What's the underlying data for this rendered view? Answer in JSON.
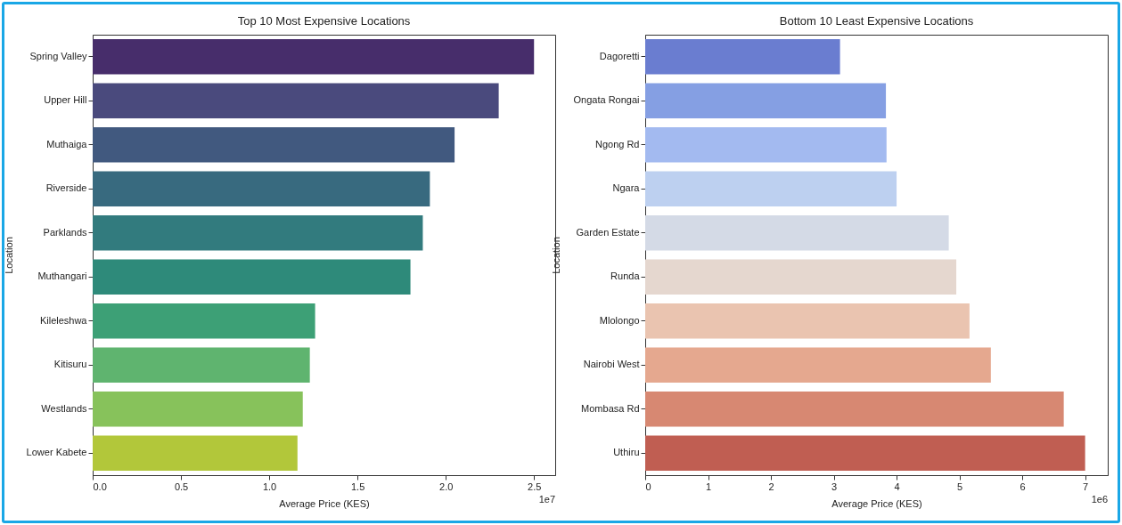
{
  "chart_data": [
    {
      "type": "bar",
      "orientation": "horizontal",
      "title": "Top 10 Most Expensive Locations",
      "xlabel": "Average Price (KES)",
      "ylabel": "Location",
      "categories": [
        "Spring Valley",
        "Upper Hill",
        "Muthaiga",
        "Riverside",
        "Parklands",
        "Muthangari",
        "Kileleshwa",
        "Kitisuru",
        "Westlands",
        "Lower Kabete"
      ],
      "values": [
        2.5,
        2.3,
        2.05,
        1.91,
        1.87,
        1.8,
        1.26,
        1.23,
        1.19,
        1.16
      ],
      "colors": [
        "#472d6b",
        "#4a4a7d",
        "#41597f",
        "#386a7f",
        "#327b7e",
        "#2e8a7a",
        "#3da076",
        "#5fb46f",
        "#87c25b",
        "#b2c73a"
      ],
      "xlim": [
        0,
        2.62
      ],
      "xticks": [
        {
          "value": 0,
          "label": "0.0"
        },
        0.5,
        {
          "value": 1,
          "label": "1.0"
        },
        1.5,
        {
          "value": 2,
          "label": "2.0"
        },
        2.5
      ],
      "annotations": [
        "1e7"
      ]
    },
    {
      "type": "bar",
      "orientation": "horizontal",
      "title": "Bottom 10 Least Expensive Locations",
      "xlabel": "Average Price (KES)",
      "ylabel": "Location",
      "categories": [
        "Dagoretti",
        "Ongata Rongai",
        "Ngong Rd",
        "Ngara",
        "Garden Estate",
        "Runda",
        "Mlolongo",
        "Nairobi West",
        "Mombasa Rd",
        "Uthiru"
      ],
      "values": [
        3.1,
        3.83,
        3.84,
        4.0,
        4.83,
        4.95,
        5.16,
        5.5,
        6.66,
        7.0
      ],
      "colors": [
        "#6a7dd0",
        "#859fe3",
        "#a3baf0",
        "#bdd0f0",
        "#d4dae6",
        "#e5d7cf",
        "#eac4b0",
        "#e5a88f",
        "#d78872",
        "#c05e52"
      ],
      "xlim": [
        0,
        7.36
      ],
      "xticks": [
        0,
        1,
        2,
        3,
        4,
        5,
        6,
        7
      ],
      "annotations": [
        "1e6"
      ]
    }
  ]
}
